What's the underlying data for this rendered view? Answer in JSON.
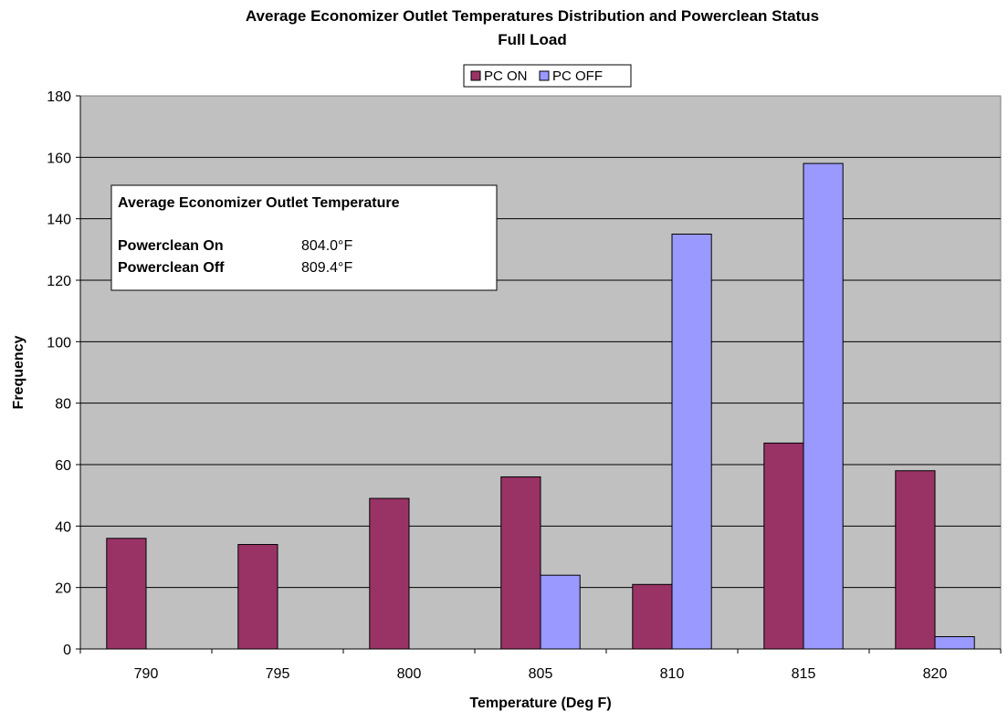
{
  "chart_data": {
    "type": "bar",
    "title": "Average Economizer Outlet Temperatures Distribution and Powerclean Status",
    "subtitle": "Full Load",
    "xlabel": "Temperature (Deg F)",
    "ylabel": "Frequency",
    "categories": [
      "790",
      "795",
      "800",
      "805",
      "810",
      "815",
      "820"
    ],
    "series": [
      {
        "name": "PC ON",
        "color": "#993366",
        "values": [
          36,
          34,
          49,
          56,
          21,
          67,
          58
        ]
      },
      {
        "name": "PC OFF",
        "color": "#9999ff",
        "values": [
          0,
          0,
          0,
          24,
          135,
          158,
          4
        ]
      }
    ],
    "ylim": [
      0,
      180
    ],
    "yticks": [
      "0",
      "20",
      "40",
      "60",
      "80",
      "100",
      "120",
      "140",
      "160",
      "180"
    ],
    "grid": true,
    "plot_background": "#c0c0c0",
    "legend_position": "top-center",
    "annotation": {
      "heading": "Average Economizer Outlet Temperature",
      "rows": [
        {
          "label": "Powerclean On",
          "value": "804.0°F"
        },
        {
          "label": "Powerclean Off",
          "value": "809.4°F"
        }
      ]
    }
  }
}
